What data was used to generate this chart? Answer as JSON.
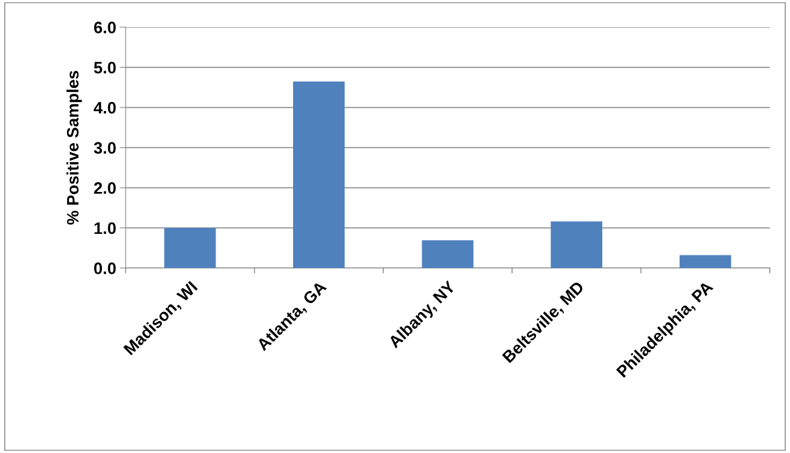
{
  "chart_data": {
    "type": "bar",
    "ylabel": "% Positive Samples",
    "categories": [
      "Madison, WI",
      "Atlanta, GA",
      "Albany, NY",
      "Beltsville, MD",
      "Philadelphia, PA"
    ],
    "values": [
      1.0,
      4.65,
      0.69,
      1.16,
      0.32
    ],
    "color": "#4f81bd",
    "ylim": [
      0,
      6
    ],
    "yticks": [
      {
        "value": 0,
        "label": "0.0"
      },
      {
        "value": 1,
        "label": "1.0"
      },
      {
        "value": 2,
        "label": "2.0"
      },
      {
        "value": 3,
        "label": "3.0"
      },
      {
        "value": 4,
        "label": "4.0"
      },
      {
        "value": 5,
        "label": "5.0"
      },
      {
        "value": 6,
        "label": "6.0"
      }
    ],
    "grid": "y",
    "legend": false
  }
}
